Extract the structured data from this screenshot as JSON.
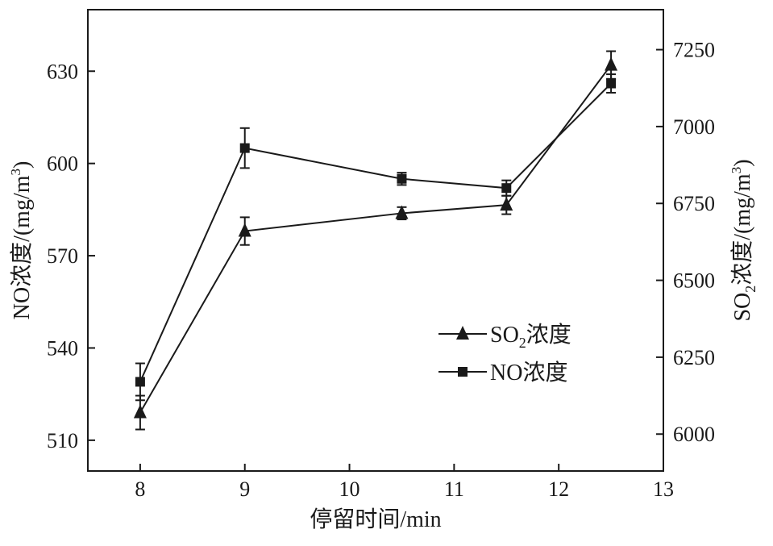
{
  "chart_data": {
    "type": "line",
    "xlabel": "停留时间/min",
    "ylabel_left": {
      "main": "NO浓度/(mg/m",
      "sup": "3",
      "close": ")"
    },
    "ylabel_right": {
      "a": "SO",
      "sub": "2",
      "b": "浓度/(mg/m",
      "sup": "3",
      "close": ")"
    },
    "xlim": [
      7.5,
      13
    ],
    "ylim_left": [
      500,
      650
    ],
    "ylim_right": [
      5880,
      7380
    ],
    "x_ticks": [
      8,
      9,
      10,
      11,
      12,
      13
    ],
    "y_left_ticks": [
      510,
      540,
      570,
      600,
      630
    ],
    "y_right_ticks": [
      6000,
      6250,
      6500,
      6750,
      7000,
      7250
    ],
    "series": [
      {
        "name": "SO2浓度",
        "legend_label": {
          "a": "SO",
          "sub": "2",
          "b": "浓度"
        },
        "axis": "right",
        "marker": "triangle",
        "x": [
          8,
          9,
          10.5,
          11.5,
          12.5
        ],
        "y": [
          6070,
          6660,
          6718,
          6745,
          7200
        ],
        "err": [
          55,
          45,
          20,
          30,
          45
        ]
      },
      {
        "name": "NO浓度",
        "legend_label": {
          "a": "NO浓度"
        },
        "axis": "left",
        "marker": "square",
        "x": [
          8,
          9,
          10.5,
          11.5,
          12.5
        ],
        "y": [
          529,
          605,
          595,
          592,
          626
        ],
        "err": [
          6,
          6.5,
          2,
          2.5,
          3
        ]
      }
    ],
    "legend_position": "center-right",
    "grid": false,
    "color": "#1a1a1a"
  }
}
